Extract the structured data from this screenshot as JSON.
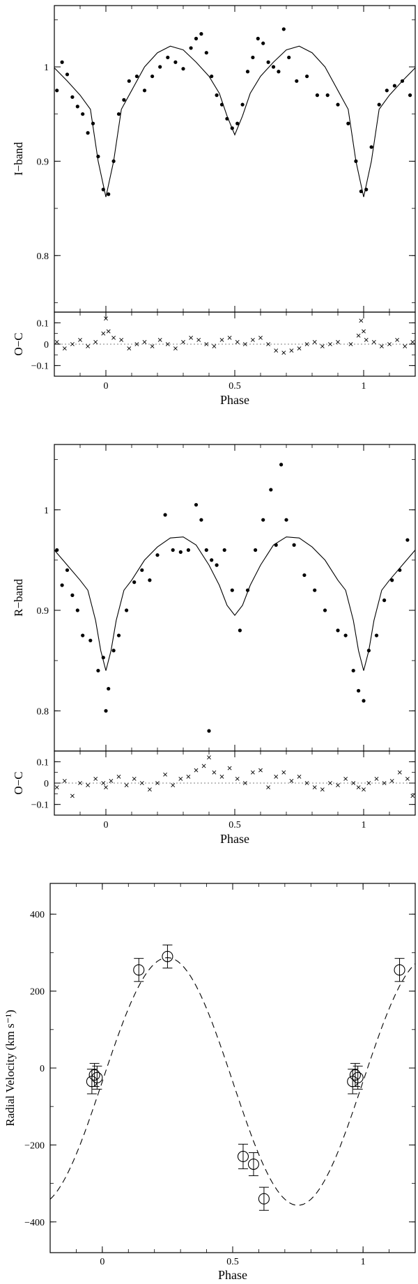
{
  "chart_data": [
    {
      "id": "iband",
      "type": "scatter",
      "ylabel": "I−band",
      "xlim": [
        -0.2,
        1.2
      ],
      "ylim": [
        0.74,
        1.065
      ],
      "yticks": [
        0.8,
        0.9,
        1.0
      ],
      "ytick_labels": [
        "0.8",
        "0.9",
        "1"
      ],
      "xticks": [
        0,
        0.5,
        1.0
      ],
      "xtick_labels": [
        "0",
        "0.5",
        "1"
      ],
      "model_curve": {
        "phase": [
          -0.2,
          -0.15,
          -0.1,
          -0.06,
          -0.03,
          0.0,
          0.03,
          0.06,
          0.1,
          0.15,
          0.2,
          0.25,
          0.3,
          0.35,
          0.4,
          0.44,
          0.47,
          0.5,
          0.53,
          0.56,
          0.6,
          0.65,
          0.7,
          0.75,
          0.8,
          0.85,
          0.9,
          0.94,
          0.97,
          1.0,
          1.03,
          1.06,
          1.1,
          1.15,
          1.2
        ],
        "flux": [
          0.999,
          0.985,
          0.97,
          0.955,
          0.9,
          0.862,
          0.9,
          0.955,
          0.975,
          1.0,
          1.015,
          1.022,
          1.018,
          1.005,
          0.99,
          0.972,
          0.948,
          0.928,
          0.948,
          0.972,
          0.99,
          1.005,
          1.018,
          1.022,
          1.015,
          1.0,
          0.975,
          0.955,
          0.9,
          0.862,
          0.9,
          0.955,
          0.97,
          0.985,
          0.999
        ]
      },
      "points": {
        "phase": [
          -0.19,
          -0.17,
          -0.15,
          -0.13,
          -0.11,
          -0.09,
          -0.07,
          -0.05,
          -0.03,
          -0.01,
          0.01,
          0.03,
          0.05,
          0.07,
          0.09,
          0.12,
          0.15,
          0.18,
          0.21,
          0.24,
          0.27,
          0.3,
          0.33,
          0.35,
          0.37,
          0.39,
          0.41,
          0.43,
          0.45,
          0.47,
          0.49,
          0.51,
          0.53,
          0.55,
          0.57,
          0.59,
          0.61,
          0.63,
          0.65,
          0.67,
          0.69,
          0.71,
          0.74,
          0.78,
          0.82,
          0.86,
          0.9,
          0.94,
          0.97,
          0.99,
          1.01,
          1.03,
          1.06,
          1.09,
          1.12,
          1.15,
          1.18
        ],
        "flux": [
          0.975,
          1.005,
          0.992,
          0.968,
          0.958,
          0.95,
          0.93,
          0.94,
          0.905,
          0.87,
          0.865,
          0.9,
          0.95,
          0.965,
          0.985,
          0.99,
          0.975,
          0.99,
          1.0,
          1.01,
          1.005,
          0.998,
          1.02,
          1.03,
          1.035,
          1.015,
          0.99,
          0.97,
          0.96,
          0.945,
          0.935,
          0.94,
          0.96,
          0.995,
          1.01,
          1.03,
          1.025,
          1.005,
          1.0,
          0.995,
          1.04,
          1.01,
          0.985,
          0.99,
          0.97,
          0.97,
          0.96,
          0.94,
          0.9,
          0.868,
          0.87,
          0.915,
          0.96,
          0.975,
          0.98,
          0.985,
          0.97
        ]
      },
      "oc_panel": {
        "ylabel": "O−C",
        "ylim": [
          -0.15,
          0.15
        ],
        "yticks": [
          0.1,
          0.0,
          -0.1
        ],
        "ytick_labels": [
          "0.1",
          "0",
          "−0.1"
        ],
        "xlabel": "Phase",
        "residuals": {
          "phase": [
            -0.19,
            -0.16,
            -0.13,
            -0.1,
            -0.07,
            -0.04,
            -0.01,
            0.0,
            0.01,
            0.03,
            0.06,
            0.09,
            0.12,
            0.15,
            0.18,
            0.21,
            0.24,
            0.27,
            0.3,
            0.33,
            0.36,
            0.39,
            0.42,
            0.45,
            0.48,
            0.51,
            0.54,
            0.57,
            0.6,
            0.63,
            0.66,
            0.69,
            0.72,
            0.75,
            0.78,
            0.81,
            0.84,
            0.87,
            0.9,
            0.95,
            0.98,
            0.99,
            1.0,
            1.01,
            1.04,
            1.07,
            1.1,
            1.13,
            1.16,
            1.19
          ],
          "oc": [
            0.01,
            -0.02,
            0.0,
            0.02,
            -0.01,
            0.01,
            0.05,
            0.12,
            0.06,
            0.03,
            0.02,
            -0.02,
            0.0,
            0.01,
            -0.01,
            0.02,
            0.0,
            -0.02,
            0.01,
            0.03,
            0.02,
            0.0,
            -0.01,
            0.02,
            0.03,
            0.01,
            0.0,
            0.02,
            0.03,
            0.0,
            -0.03,
            -0.04,
            -0.03,
            -0.02,
            0.0,
            0.01,
            -0.01,
            0.0,
            0.01,
            0.0,
            0.04,
            0.11,
            0.06,
            0.02,
            0.01,
            -0.01,
            0.0,
            0.02,
            -0.01,
            0.01
          ]
        }
      }
    },
    {
      "id": "rband",
      "type": "scatter",
      "ylabel": "R−band",
      "xlim": [
        -0.2,
        1.2
      ],
      "ylim": [
        0.76,
        1.065
      ],
      "yticks": [
        0.8,
        0.9,
        1.0
      ],
      "ytick_labels": [
        "0.8",
        "0.9",
        "1"
      ],
      "xticks": [
        0,
        0.5,
        1.0
      ],
      "xtick_labels": [
        "0",
        "0.5",
        "1"
      ],
      "model_curve": {
        "phase": [
          -0.2,
          -0.15,
          -0.1,
          -0.07,
          -0.04,
          -0.02,
          0.0,
          0.02,
          0.04,
          0.07,
          0.1,
          0.15,
          0.2,
          0.25,
          0.3,
          0.35,
          0.4,
          0.44,
          0.47,
          0.5,
          0.53,
          0.56,
          0.6,
          0.65,
          0.7,
          0.75,
          0.8,
          0.85,
          0.9,
          0.93,
          0.96,
          0.98,
          1.0,
          1.02,
          1.04,
          1.07,
          1.1,
          1.15,
          1.2
        ],
        "flux": [
          0.96,
          0.945,
          0.93,
          0.92,
          0.89,
          0.86,
          0.84,
          0.86,
          0.89,
          0.92,
          0.93,
          0.95,
          0.963,
          0.972,
          0.973,
          0.965,
          0.945,
          0.925,
          0.905,
          0.895,
          0.905,
          0.925,
          0.945,
          0.965,
          0.973,
          0.972,
          0.963,
          0.95,
          0.93,
          0.92,
          0.89,
          0.86,
          0.84,
          0.86,
          0.89,
          0.92,
          0.93,
          0.945,
          0.96
        ]
      },
      "points": {
        "phase": [
          -0.19,
          -0.17,
          -0.15,
          -0.13,
          -0.11,
          -0.09,
          -0.06,
          -0.03,
          -0.01,
          0.0,
          0.01,
          0.03,
          0.05,
          0.08,
          0.11,
          0.14,
          0.17,
          0.2,
          0.23,
          0.26,
          0.29,
          0.32,
          0.35,
          0.37,
          0.39,
          0.4,
          0.41,
          0.43,
          0.46,
          0.49,
          0.52,
          0.55,
          0.58,
          0.61,
          0.64,
          0.66,
          0.68,
          0.7,
          0.73,
          0.77,
          0.81,
          0.85,
          0.9,
          0.93,
          0.96,
          0.98,
          1.0,
          1.02,
          1.05,
          1.08,
          1.11,
          1.14,
          1.17
        ],
        "flux": [
          0.96,
          0.925,
          0.94,
          0.915,
          0.9,
          0.875,
          0.87,
          0.84,
          0.853,
          0.8,
          0.822,
          0.86,
          0.875,
          0.9,
          0.928,
          0.94,
          0.93,
          0.955,
          0.995,
          0.96,
          0.958,
          0.96,
          1.005,
          0.99,
          0.96,
          0.78,
          0.95,
          0.945,
          0.96,
          0.92,
          0.88,
          0.92,
          0.96,
          0.99,
          1.02,
          0.965,
          1.045,
          0.99,
          0.965,
          0.935,
          0.92,
          0.9,
          0.88,
          0.875,
          0.84,
          0.82,
          0.81,
          0.86,
          0.875,
          0.91,
          0.93,
          0.94,
          0.97
        ]
      },
      "oc_panel": {
        "ylabel": "O−C",
        "ylim": [
          -0.15,
          0.15
        ],
        "yticks": [
          0.1,
          0.0,
          -0.1
        ],
        "ytick_labels": [
          "0.1",
          "0",
          "−0.1"
        ],
        "xlabel": "Phase",
        "residuals": {
          "phase": [
            -0.19,
            -0.16,
            -0.13,
            -0.1,
            -0.07,
            -0.04,
            -0.01,
            0.0,
            0.02,
            0.05,
            0.08,
            0.11,
            0.14,
            0.17,
            0.2,
            0.23,
            0.26,
            0.29,
            0.32,
            0.35,
            0.38,
            0.4,
            0.42,
            0.45,
            0.48,
            0.51,
            0.54,
            0.57,
            0.6,
            0.63,
            0.66,
            0.69,
            0.72,
            0.75,
            0.78,
            0.81,
            0.84,
            0.87,
            0.9,
            0.93,
            0.96,
            0.98,
            1.0,
            1.02,
            1.05,
            1.08,
            1.11,
            1.14,
            1.17,
            1.19
          ],
          "oc": [
            -0.02,
            0.01,
            -0.06,
            0.0,
            -0.01,
            0.02,
            0.0,
            -0.02,
            0.01,
            0.03,
            -0.01,
            0.02,
            0.0,
            -0.03,
            0.0,
            0.04,
            -0.01,
            0.02,
            0.03,
            0.06,
            0.08,
            0.12,
            0.05,
            0.03,
            0.07,
            0.02,
            0.0,
            0.05,
            0.06,
            -0.02,
            0.03,
            0.05,
            0.01,
            0.03,
            0.0,
            -0.02,
            -0.03,
            0.0,
            -0.01,
            0.02,
            0.0,
            -0.02,
            -0.03,
            0.0,
            0.02,
            0.0,
            0.01,
            0.05,
            0.02,
            -0.06
          ]
        }
      }
    },
    {
      "id": "rv",
      "type": "scatter",
      "xlabel": "Phase",
      "ylabel": "Radial Velocity (km s⁻¹)",
      "xlim": [
        -0.2,
        1.2
      ],
      "ylim": [
        -480,
        480
      ],
      "yticks": [
        -400,
        -200,
        0,
        200,
        400
      ],
      "ytick_labels": [
        "−400",
        "−200",
        "0",
        "200",
        "400"
      ],
      "xticks": [
        0,
        0.5,
        1.0
      ],
      "xtick_labels": [
        "0",
        "0.5",
        "1"
      ],
      "orbit_fit": {
        "gamma": -35,
        "K": 322,
        "style": "dashed"
      },
      "points": {
        "phase": [
          -0.04,
          -0.03,
          -0.02,
          0.14,
          0.25,
          0.54,
          0.58,
          0.62,
          0.96,
          0.97,
          0.98,
          1.14
        ],
        "rv": [
          -35,
          -18,
          -25,
          255,
          290,
          -230,
          -250,
          -340,
          -35,
          -18,
          -25,
          255
        ],
        "err": [
          32,
          30,
          30,
          30,
          30,
          32,
          30,
          30,
          32,
          30,
          30,
          30
        ]
      }
    }
  ]
}
